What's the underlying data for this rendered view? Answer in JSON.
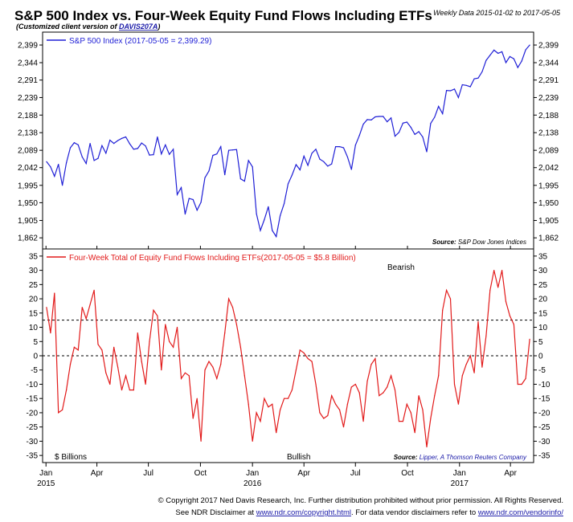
{
  "header": {
    "title": "S&P 500 Index vs. Four-Week Equity Fund Flows Including ETFs",
    "subtitle_prefix": "(Customized client version of ",
    "subtitle_link": "DAVIS207A",
    "subtitle_suffix": ")",
    "date_range": "Weekly Data 2015-01-02 to 2017-05-05"
  },
  "colors": {
    "spx": "#1f1fd6",
    "flows": "#e21a1a",
    "axis": "#000000",
    "link": "#1a1aa8"
  },
  "chart_data": [
    {
      "type": "line",
      "series": [
        {
          "name": "S&P 500 Index (2017-05-05 = 2,399.29)",
          "x": [
            "2015-01-02",
            "2015-01-09",
            "2015-01-16",
            "2015-01-23",
            "2015-01-30",
            "2015-02-06",
            "2015-02-13",
            "2015-02-20",
            "2015-02-27",
            "2015-03-06",
            "2015-03-13",
            "2015-03-20",
            "2015-03-27",
            "2015-04-03",
            "2015-04-10",
            "2015-04-17",
            "2015-04-24",
            "2015-05-01",
            "2015-05-08",
            "2015-05-15",
            "2015-05-22",
            "2015-05-29",
            "2015-06-05",
            "2015-06-12",
            "2015-06-19",
            "2015-06-26",
            "2015-07-03",
            "2015-07-10",
            "2015-07-17",
            "2015-07-24",
            "2015-07-31",
            "2015-08-07",
            "2015-08-14",
            "2015-08-21",
            "2015-08-28",
            "2015-09-04",
            "2015-09-11",
            "2015-09-18",
            "2015-09-25",
            "2015-10-02",
            "2015-10-09",
            "2015-10-16",
            "2015-10-23",
            "2015-10-30",
            "2015-11-06",
            "2015-11-13",
            "2015-11-20",
            "2015-11-27",
            "2015-12-04",
            "2015-12-11",
            "2015-12-18",
            "2015-12-25",
            "2016-01-01",
            "2016-01-08",
            "2016-01-15",
            "2016-01-22",
            "2016-01-29",
            "2016-02-05",
            "2016-02-12",
            "2016-02-19",
            "2016-02-26",
            "2016-03-04",
            "2016-03-11",
            "2016-03-18",
            "2016-03-25",
            "2016-04-01",
            "2016-04-08",
            "2016-04-15",
            "2016-04-22",
            "2016-04-29",
            "2016-05-06",
            "2016-05-13",
            "2016-05-20",
            "2016-05-27",
            "2016-06-03",
            "2016-06-10",
            "2016-06-17",
            "2016-06-24",
            "2016-07-01",
            "2016-07-08",
            "2016-07-15",
            "2016-07-22",
            "2016-07-29",
            "2016-08-05",
            "2016-08-12",
            "2016-08-19",
            "2016-08-26",
            "2016-09-02",
            "2016-09-09",
            "2016-09-16",
            "2016-09-23",
            "2016-09-30",
            "2016-10-07",
            "2016-10-14",
            "2016-10-21",
            "2016-10-28",
            "2016-11-04",
            "2016-11-11",
            "2016-11-18",
            "2016-11-25",
            "2016-12-02",
            "2016-12-09",
            "2016-12-16",
            "2016-12-23",
            "2016-12-30",
            "2017-01-06",
            "2017-01-13",
            "2017-01-20",
            "2017-01-27",
            "2017-02-03",
            "2017-02-10",
            "2017-02-17",
            "2017-02-24",
            "2017-03-03",
            "2017-03-10",
            "2017-03-17",
            "2017-03-24",
            "2017-03-31",
            "2017-04-07",
            "2017-04-14",
            "2017-04-21",
            "2017-04-28",
            "2017-05-05"
          ],
          "y": [
            2058,
            2044,
            2019,
            2051,
            1995,
            2055,
            2096,
            2110,
            2104,
            2071,
            2053,
            2108,
            2061,
            2067,
            2102,
            2081,
            2117,
            2108,
            2116,
            2122,
            2126,
            2107,
            2092,
            2094,
            2109,
            2101,
            2076,
            2077,
            2126,
            2079,
            2104,
            2078,
            2092,
            1971,
            1989,
            1921,
            1961,
            1958,
            1931,
            1951,
            2015,
            2033,
            2075,
            2079,
            2099,
            2023,
            2089,
            2090,
            2091,
            2012,
            2006,
            2061,
            2044,
            1922,
            1880,
            1907,
            1940,
            1880,
            1865,
            1917,
            1948,
            1999,
            2022,
            2050,
            2036,
            2073,
            2048,
            2081,
            2092,
            2065,
            2058,
            2046,
            2052,
            2099,
            2099,
            2096,
            2071,
            2037,
            2103,
            2130,
            2162,
            2175,
            2174,
            2183,
            2184,
            2184,
            2169,
            2180,
            2128,
            2139,
            2165,
            2168,
            2153,
            2133,
            2141,
            2126,
            2085,
            2164,
            2182,
            2213,
            2192,
            2260,
            2259,
            2264,
            2239,
            2277,
            2275,
            2271,
            2295,
            2297,
            2316,
            2351,
            2367,
            2383,
            2373,
            2378,
            2344,
            2363,
            2356,
            2329,
            2349,
            2384,
            2399
          ]
        }
      ],
      "ylabel_ticks": [
        1862,
        1905,
        1950,
        1995,
        2042,
        2089,
        2138,
        2188,
        2239,
        2291,
        2344,
        2399
      ],
      "ylabel_tick_text": [
        "1,862",
        "1,905",
        "1,950",
        "1,995",
        "2,042",
        "2,089",
        "2,138",
        "2,188",
        "2,239",
        "2,291",
        "2,344",
        "2,399"
      ],
      "yscale": "log",
      "legend_placement": "top-left",
      "source": "Source:",
      "source_name": "S&P Dow Jones Indices"
    },
    {
      "type": "line",
      "series": [
        {
          "name": "Four-Week Total of Equity Fund Flows Including ETFs(2017-05-05 = $5.8 Billion)",
          "x": [
            "2015-01-02",
            "2015-01-09",
            "2015-01-16",
            "2015-01-23",
            "2015-01-30",
            "2015-02-06",
            "2015-02-13",
            "2015-02-20",
            "2015-02-27",
            "2015-03-06",
            "2015-03-13",
            "2015-03-20",
            "2015-03-27",
            "2015-04-03",
            "2015-04-10",
            "2015-04-17",
            "2015-04-24",
            "2015-05-01",
            "2015-05-08",
            "2015-05-15",
            "2015-05-22",
            "2015-05-29",
            "2015-06-05",
            "2015-06-12",
            "2015-06-19",
            "2015-06-26",
            "2015-07-03",
            "2015-07-10",
            "2015-07-17",
            "2015-07-24",
            "2015-07-31",
            "2015-08-07",
            "2015-08-14",
            "2015-08-21",
            "2015-08-28",
            "2015-09-04",
            "2015-09-11",
            "2015-09-18",
            "2015-09-25",
            "2015-10-02",
            "2015-10-09",
            "2015-10-16",
            "2015-10-23",
            "2015-10-30",
            "2015-11-06",
            "2015-11-13",
            "2015-11-20",
            "2015-11-27",
            "2015-12-04",
            "2015-12-11",
            "2015-12-18",
            "2015-12-25",
            "2016-01-01",
            "2016-01-08",
            "2016-01-15",
            "2016-01-22",
            "2016-01-29",
            "2016-02-05",
            "2016-02-12",
            "2016-02-19",
            "2016-02-26",
            "2016-03-04",
            "2016-03-11",
            "2016-03-18",
            "2016-03-25",
            "2016-04-01",
            "2016-04-08",
            "2016-04-15",
            "2016-04-22",
            "2016-04-29",
            "2016-05-06",
            "2016-05-13",
            "2016-05-20",
            "2016-05-27",
            "2016-06-03",
            "2016-06-10",
            "2016-06-17",
            "2016-06-24",
            "2016-07-01",
            "2016-07-08",
            "2016-07-15",
            "2016-07-22",
            "2016-07-29",
            "2016-08-05",
            "2016-08-12",
            "2016-08-19",
            "2016-08-26",
            "2016-09-02",
            "2016-09-09",
            "2016-09-16",
            "2016-09-23",
            "2016-09-30",
            "2016-10-07",
            "2016-10-14",
            "2016-10-21",
            "2016-10-28",
            "2016-11-04",
            "2016-11-11",
            "2016-11-18",
            "2016-11-25",
            "2016-12-02",
            "2016-12-09",
            "2016-12-16",
            "2016-12-23",
            "2016-12-30",
            "2017-01-06",
            "2017-01-13",
            "2017-01-20",
            "2017-01-27",
            "2017-02-03",
            "2017-02-10",
            "2017-02-17",
            "2017-02-24",
            "2017-03-03",
            "2017-03-10",
            "2017-03-17",
            "2017-03-24",
            "2017-03-31",
            "2017-04-07",
            "2017-04-14",
            "2017-04-21",
            "2017-04-28",
            "2017-05-05"
          ],
          "y": [
            17,
            8,
            22,
            -20,
            -19,
            -12,
            -3,
            3,
            2,
            17,
            13,
            18,
            23,
            4,
            2,
            -6,
            -10,
            3,
            -4,
            -12,
            -7,
            -12,
            -12,
            8,
            -2,
            -10,
            5,
            16,
            14,
            -5,
            11,
            5,
            3,
            10,
            -8,
            -6,
            -7,
            -22,
            -15,
            -30,
            -5,
            -2,
            -4,
            -8,
            -3,
            8,
            20,
            17,
            11,
            3,
            -7,
            -17,
            -30,
            -20,
            -23,
            -15,
            -18,
            -17,
            -27,
            -19,
            -15,
            -15,
            -12,
            -5,
            2,
            1,
            -1,
            -2,
            -10,
            -20,
            -22,
            -21,
            -14,
            -17,
            -19,
            -25,
            -17,
            -11,
            -10,
            -13,
            -23,
            -9,
            -3,
            -1,
            -14,
            -13,
            -11,
            -7,
            -12,
            -23,
            -23,
            -17,
            -20,
            -27,
            -14,
            -19,
            -32,
            -22,
            -14,
            -7,
            16,
            23,
            20,
            -10,
            -17,
            -7,
            -3,
            0,
            -6,
            12,
            -4,
            7,
            23,
            30,
            24,
            30,
            19,
            14,
            11,
            -10,
            -10,
            -8,
            5.8
          ]
        }
      ],
      "ylim": [
        -35,
        35
      ],
      "yticks": [
        -35,
        -30,
        -25,
        -20,
        -15,
        -10,
        -5,
        0,
        5,
        10,
        15,
        20,
        25,
        30,
        35
      ],
      "reference_lines": [
        12.5,
        0
      ],
      "legend_placement": "top-left",
      "annotations": {
        "top": "Bearish",
        "bottom": "Bullish",
        "unit": "$ Billions"
      },
      "source": "Source:",
      "source_name": "Lipper, A Thomson Reuters Company"
    }
  ],
  "x_axis": {
    "months": [
      {
        "label": "Jan",
        "date": "2015-01-01"
      },
      {
        "label": "Apr",
        "date": "2015-04-01"
      },
      {
        "label": "Jul",
        "date": "2015-07-01"
      },
      {
        "label": "Oct",
        "date": "2015-10-01"
      },
      {
        "label": "Jan",
        "date": "2016-01-01"
      },
      {
        "label": "Apr",
        "date": "2016-04-01"
      },
      {
        "label": "Jul",
        "date": "2016-07-01"
      },
      {
        "label": "Oct",
        "date": "2016-10-01"
      },
      {
        "label": "Jan",
        "date": "2017-01-01"
      },
      {
        "label": "Apr",
        "date": "2017-04-01"
      }
    ],
    "years": [
      {
        "label": "2015",
        "date": "2015-01-01"
      },
      {
        "label": "2016",
        "date": "2016-01-01"
      },
      {
        "label": "2017",
        "date": "2017-01-01"
      }
    ]
  },
  "footer": {
    "line1": "© Copyright 2017 Ned Davis Research, Inc. Further distribution prohibited without prior permission. All Rights Reserved.",
    "line2_prefix": "See NDR Disclaimer at ",
    "line2_link1": "www.ndr.com/copyright.html",
    "line2_middle": ". For data vendor disclaimers refer to ",
    "line2_link2": "www.ndr.com/vendorinfo/"
  }
}
